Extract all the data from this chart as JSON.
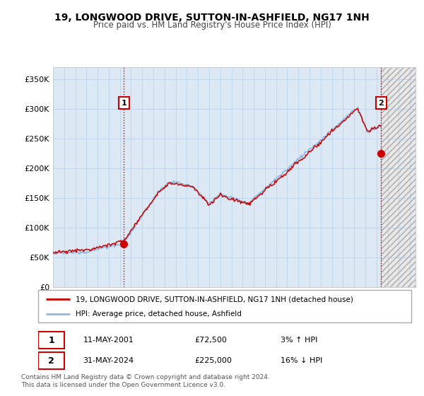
{
  "title": "19, LONGWOOD DRIVE, SUTTON-IN-ASHFIELD, NG17 1NH",
  "subtitle": "Price paid vs. HM Land Registry's House Price Index (HPI)",
  "ylabel_ticks": [
    "£0",
    "£50K",
    "£100K",
    "£150K",
    "£200K",
    "£250K",
    "£300K",
    "£350K"
  ],
  "ytick_values": [
    0,
    50000,
    100000,
    150000,
    200000,
    250000,
    300000,
    350000
  ],
  "ylim": [
    0,
    370000
  ],
  "xlim_start": 1995.0,
  "xlim_end": 2027.5,
  "plot_bg_color": "#dce9f5",
  "hpi_color": "#90b8e0",
  "price_color": "#cc0000",
  "sale1_x": 2001.36,
  "sale1_y": 72500,
  "sale2_x": 2024.42,
  "sale2_y": 225000,
  "legend_line1": "19, LONGWOOD DRIVE, SUTTON-IN-ASHFIELD, NG17 1NH (detached house)",
  "legend_line2": "HPI: Average price, detached house, Ashfield",
  "info1_date": "11-MAY-2001",
  "info1_price": "£72,500",
  "info1_hpi": "3% ↑ HPI",
  "info2_date": "31-MAY-2024",
  "info2_price": "£225,000",
  "info2_hpi": "16% ↓ HPI",
  "footer": "Contains HM Land Registry data © Crown copyright and database right 2024.\nThis data is licensed under the Open Government Licence v3.0.",
  "future_start": 2024.42,
  "future_end": 2027.5
}
